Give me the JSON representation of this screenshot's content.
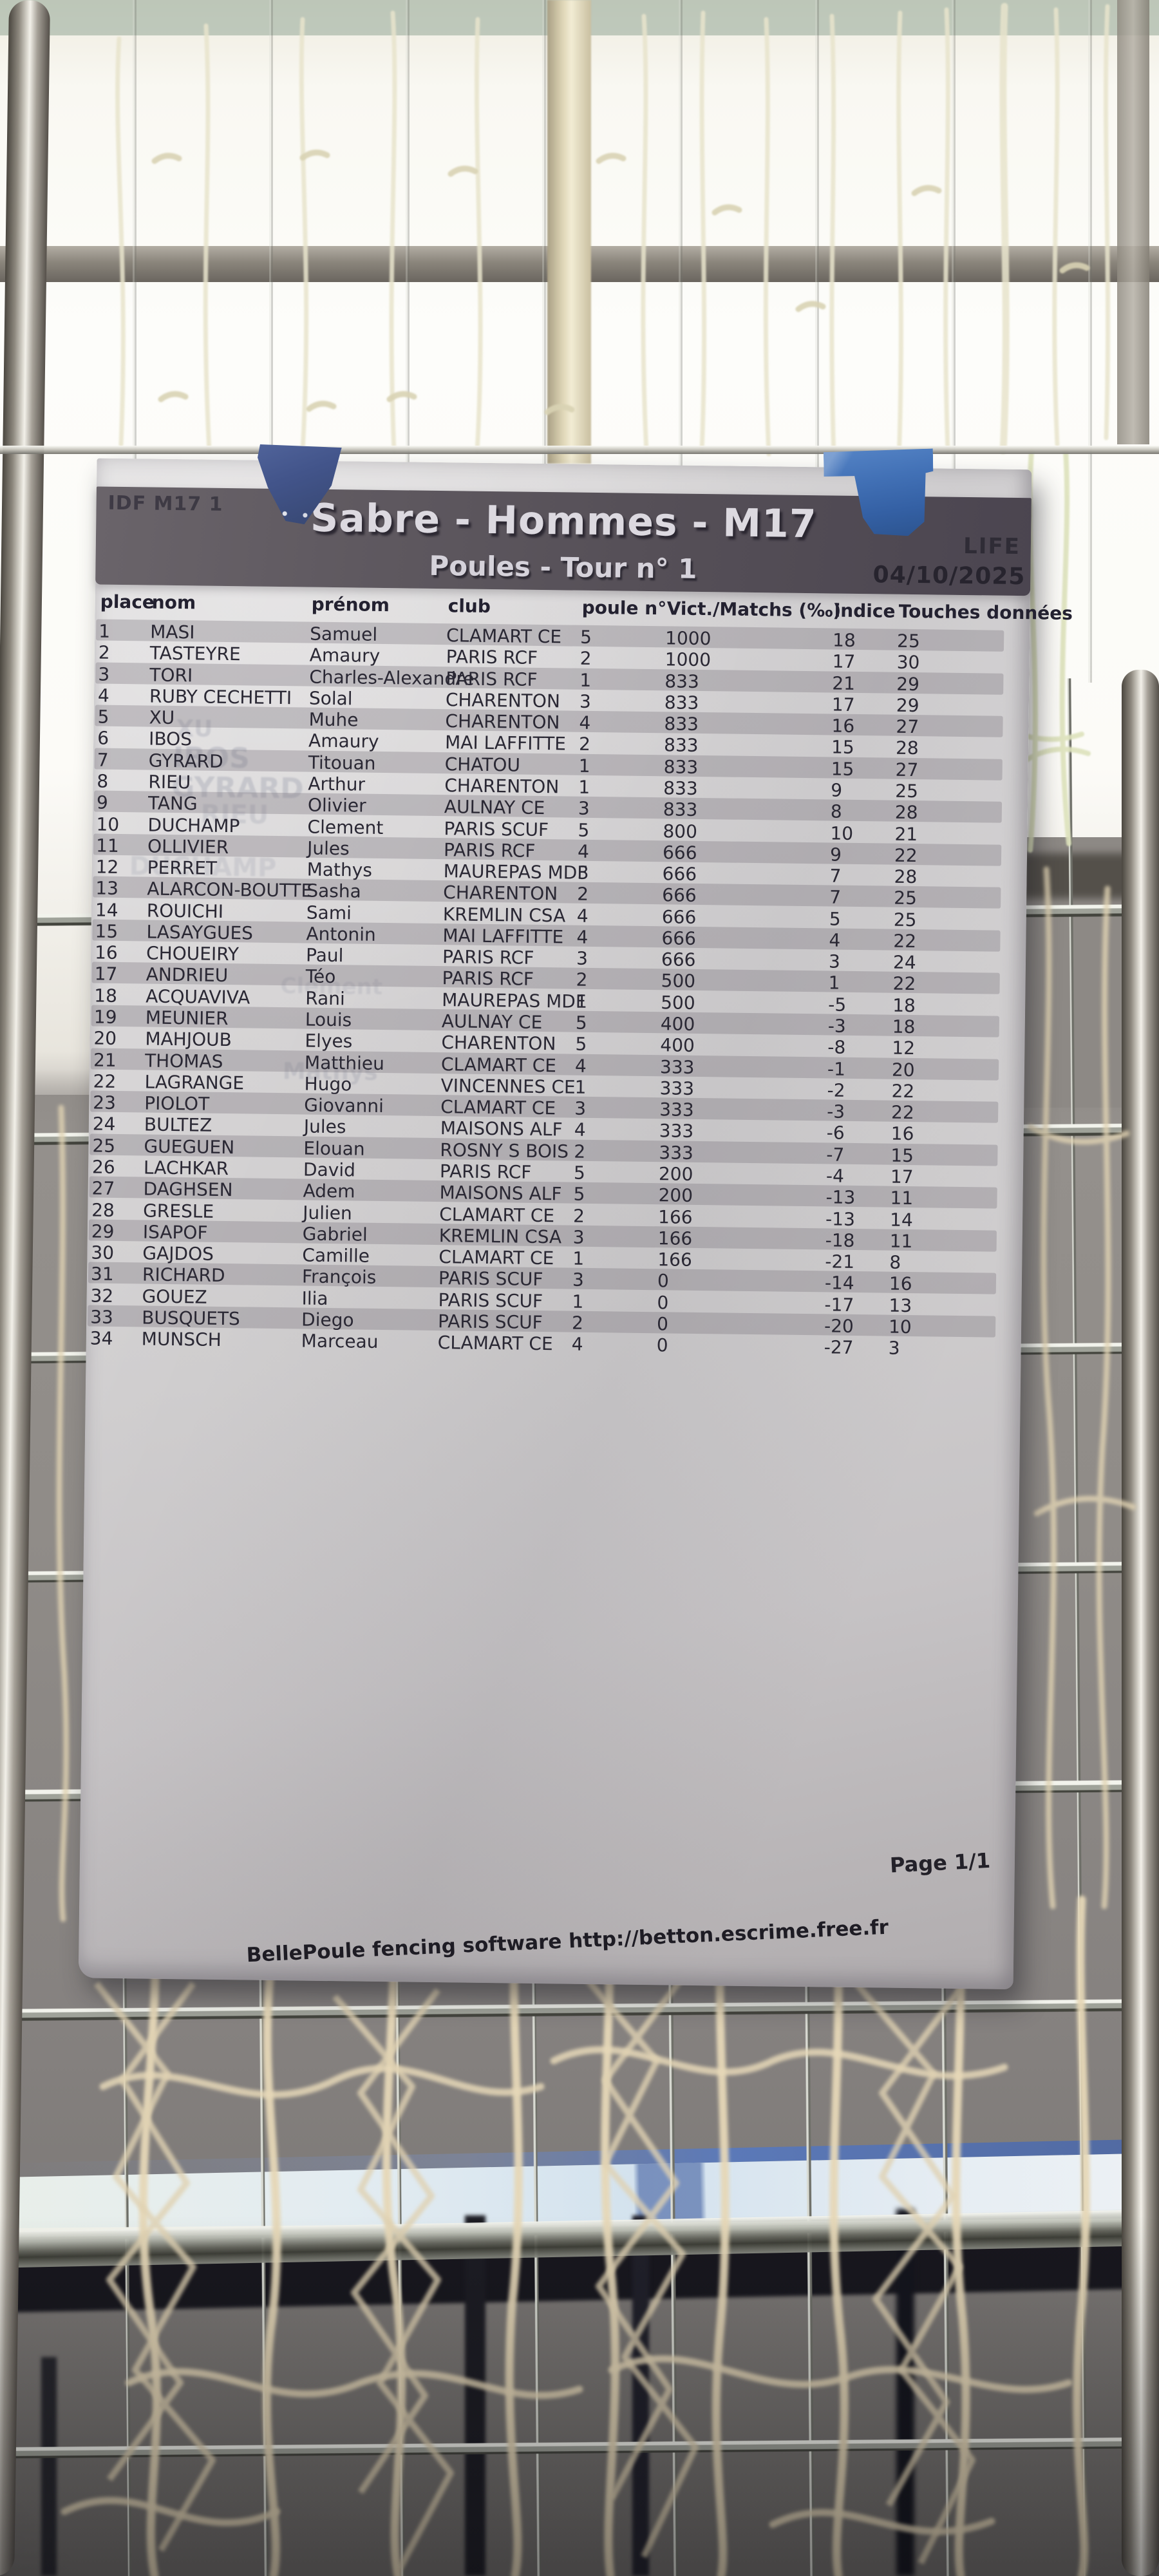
{
  "header": {
    "event_code": "IDF M17 1",
    "title": "Sabre - Hommes - M17",
    "round": "Poules - Tour n° 1",
    "league": "LIFE",
    "date": "04/10/2025"
  },
  "table": {
    "columns": [
      "place",
      "nom",
      "prénom",
      "club",
      "poule n°",
      "Vict./Matchs (‰)",
      "indice",
      "Touches données"
    ],
    "column_keys": [
      "place",
      "nom",
      "prenom",
      "club",
      "poule",
      "vict_matchs",
      "indice",
      "touches_donnees"
    ],
    "rows": [
      [
        "1",
        "MASI",
        "Samuel",
        "CLAMART CE",
        "5",
        "1000",
        "18",
        "25"
      ],
      [
        "2",
        "TASTEYRE",
        "Amaury",
        "PARIS RCF",
        "2",
        "1000",
        "17",
        "30"
      ],
      [
        "3",
        "TORI",
        "Charles-Alexandre",
        "PARIS RCF",
        "1",
        "833",
        "21",
        "29"
      ],
      [
        "4",
        "RUBY CECHETTI",
        "Solal",
        "CHARENTON",
        "3",
        "833",
        "17",
        "29"
      ],
      [
        "5",
        "XU",
        "Muhe",
        "CHARENTON",
        "4",
        "833",
        "16",
        "27"
      ],
      [
        "6",
        "IBOS",
        "Amaury",
        "MAI LAFFITTE",
        "2",
        "833",
        "15",
        "28"
      ],
      [
        "7",
        "GYRARD",
        "Titouan",
        "CHATOU",
        "1",
        "833",
        "15",
        "27"
      ],
      [
        "8",
        "RIEU",
        "Arthur",
        "CHARENTON",
        "1",
        "833",
        "9",
        "25"
      ],
      [
        "9",
        "TANG",
        "Olivier",
        "AULNAY CE",
        "3",
        "833",
        "8",
        "28"
      ],
      [
        "10",
        "DUCHAMP",
        "Clement",
        "PARIS SCUF",
        "5",
        "800",
        "10",
        "21"
      ],
      [
        "11",
        "OLLIVIER",
        "Jules",
        "PARIS RCF",
        "4",
        "666",
        "9",
        "22"
      ],
      [
        "12",
        "PERRET",
        "Mathys",
        "MAUREPAS MDF",
        "3",
        "666",
        "7",
        "28"
      ],
      [
        "13",
        "ALARCON-BOUTTE",
        "Sasha",
        "CHARENTON",
        "2",
        "666",
        "7",
        "25"
      ],
      [
        "14",
        "ROUICHI",
        "Sami",
        "KREMLIN CSA",
        "4",
        "666",
        "5",
        "25"
      ],
      [
        "15",
        "LASAYGUES",
        "Antonin",
        "MAI LAFFITTE",
        "4",
        "666",
        "4",
        "22"
      ],
      [
        "16",
        "CHOUEIRY",
        "Paul",
        "PARIS RCF",
        "3",
        "666",
        "3",
        "24"
      ],
      [
        "17",
        "ANDRIEU",
        "Téo",
        "PARIS RCF",
        "2",
        "500",
        "1",
        "22"
      ],
      [
        "18",
        "ACQUAVIVA",
        "Rani",
        "MAUREPAS MDF",
        "1",
        "500",
        "-5",
        "18"
      ],
      [
        "19",
        "MEUNIER",
        "Louis",
        "AULNAY CE",
        "5",
        "400",
        "-3",
        "18"
      ],
      [
        "20",
        "MAHJOUB",
        "Elyes",
        "CHARENTON",
        "5",
        "400",
        "-8",
        "12"
      ],
      [
        "21",
        "THOMAS",
        "Matthieu",
        "CLAMART CE",
        "4",
        "333",
        "-1",
        "20"
      ],
      [
        "22",
        "LAGRANGE",
        "Hugo",
        "VINCENNES CE",
        "1",
        "333",
        "-2",
        "22"
      ],
      [
        "23",
        "PIOLOT",
        "Giovanni",
        "CLAMART CE",
        "3",
        "333",
        "-3",
        "22"
      ],
      [
        "24",
        "BULTEZ",
        "Jules",
        "MAISONS ALF",
        "4",
        "333",
        "-6",
        "16"
      ],
      [
        "25",
        "GUEGUEN",
        "Elouan",
        "ROSNY S BOIS",
        "2",
        "333",
        "-7",
        "15"
      ],
      [
        "26",
        "LACHKAR",
        "David",
        "PARIS RCF",
        "5",
        "200",
        "-4",
        "17"
      ],
      [
        "27",
        "DAGHSEN",
        "Adem",
        "MAISONS ALF",
        "5",
        "200",
        "-13",
        "11"
      ],
      [
        "28",
        "GRESLE",
        "Julien",
        "CLAMART CE",
        "2",
        "166",
        "-13",
        "14"
      ],
      [
        "29",
        "ISAPOF",
        "Gabriel",
        "KREMLIN CSA",
        "3",
        "166",
        "-18",
        "11"
      ],
      [
        "30",
        "GAJDOS",
        "Camille",
        "CLAMART CE",
        "1",
        "166",
        "-21",
        "8"
      ],
      [
        "31",
        "RICHARD",
        "François",
        "PARIS SCUF",
        "3",
        "0",
        "-14",
        "16"
      ],
      [
        "32",
        "GOUEZ",
        "Ilia",
        "PARIS SCUF",
        "1",
        "0",
        "-17",
        "13"
      ],
      [
        "33",
        "BUSQUETS",
        "Diego",
        "PARIS SCUF",
        "2",
        "0",
        "-20",
        "10"
      ],
      [
        "34",
        "MUNSCH",
        "Marceau",
        "CLAMART CE",
        "4",
        "0",
        "-27",
        "3"
      ]
    ]
  },
  "footer": {
    "page": "Page 1/1",
    "software_credit": "BellePoule fencing software http://betton.escrime.free.fr"
  },
  "ghost_text": [
    "XU",
    "IBOS",
    "GYRARD",
    "RIEU",
    "DUCHAMP",
    "Clement",
    "Mathys"
  ],
  "colors": {
    "tape_blue": "#3f6cb2",
    "title_band": "#5a545b",
    "paper": "#d6d4d5",
    "row_stripe": "#8f8a94",
    "wall": "#8f8b87",
    "netting": "#e4d6b6",
    "stripe_blue": "#5b79b8"
  }
}
